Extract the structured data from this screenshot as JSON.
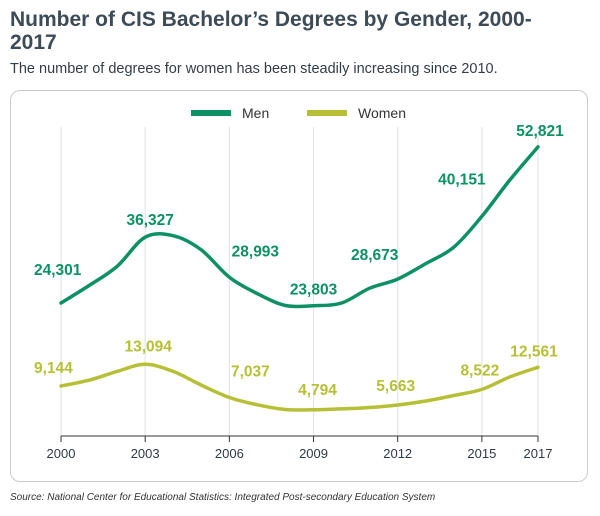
{
  "header": {
    "title": "Number of CIS Bachelor’s Degrees by Gender, 2000-2017",
    "subtitle": "The number of degrees for women has been steadily increasing since 2010."
  },
  "footer": {
    "source": "Source: National Center for Educational Statistics: Integrated Post-secondary Education System"
  },
  "colors": {
    "men": "#0e9162",
    "women": "#b6bf35",
    "grid": "#e3e5e6",
    "axis": "#333333"
  },
  "chart_data": {
    "type": "line",
    "title": "Number of CIS Bachelor’s Degrees by Gender, 2000-2017",
    "subtitle": "The number of degrees for women has been steadily increasing since 2010.",
    "xlabel": "",
    "ylabel": "",
    "x": [
      2000,
      2001,
      2002,
      2003,
      2004,
      2005,
      2006,
      2007,
      2008,
      2009,
      2010,
      2011,
      2012,
      2013,
      2014,
      2015,
      2016,
      2017
    ],
    "x_ticks": [
      "2000",
      "2003",
      "2006",
      "2009",
      "2012",
      "2015",
      "2017"
    ],
    "ylim": [
      0,
      55000
    ],
    "grid": "vertical",
    "legend_position": "top-center",
    "series": [
      {
        "name": "Men",
        "values": [
          24301,
          27500,
          31000,
          36327,
          36600,
          34000,
          28993,
          26000,
          23850,
          23803,
          24300,
          27000,
          28673,
          31500,
          34500,
          40151,
          46800,
          52821
        ],
        "labels": [
          {
            "x": 2000,
            "value": 24301,
            "text": "24,301"
          },
          {
            "x": 2003,
            "value": 36327,
            "text": "36,327"
          },
          {
            "x": 2006,
            "value": 28993,
            "text": "28,993"
          },
          {
            "x": 2009,
            "value": 23803,
            "text": "23,803"
          },
          {
            "x": 2012,
            "value": 28673,
            "text": "28,673"
          },
          {
            "x": 2015,
            "value": 40151,
            "text": "40,151"
          },
          {
            "x": 2017,
            "value": 52821,
            "text": "52,821"
          }
        ]
      },
      {
        "name": "Women",
        "values": [
          9144,
          10200,
          11800,
          13094,
          11800,
          9300,
          7037,
          5700,
          4850,
          4794,
          4950,
          5200,
          5663,
          6400,
          7400,
          8522,
          10800,
          12561
        ],
        "labels": [
          {
            "x": 2000,
            "value": 9144,
            "text": "9,144"
          },
          {
            "x": 2003,
            "value": 13094,
            "text": "13,094"
          },
          {
            "x": 2006,
            "value": 7037,
            "text": "7,037"
          },
          {
            "x": 2009,
            "value": 4794,
            "text": "4,794"
          },
          {
            "x": 2012,
            "value": 5663,
            "text": "5,663"
          },
          {
            "x": 2015,
            "value": 8522,
            "text": "8,522"
          },
          {
            "x": 2017,
            "value": 12561,
            "text": "12,561"
          }
        ]
      }
    ]
  }
}
